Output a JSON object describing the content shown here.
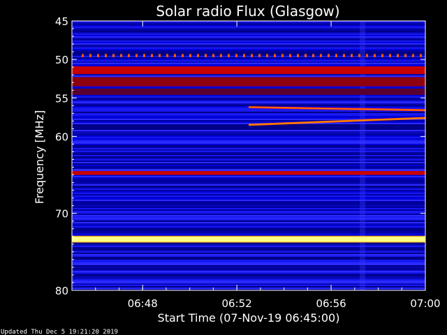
{
  "chart_data": {
    "type": "heatmap",
    "title": "Solar radio Flux (Glasgow)",
    "xlabel": "Start Time (07-Nov-19 06:45:00)",
    "ylabel": "Frequency [MHz]",
    "xlim": [
      "06:45",
      "07:00"
    ],
    "ylim": [
      45,
      80
    ],
    "y_inverted": true,
    "x_ticks": [
      "06:48",
      "06:52",
      "06:56",
      "07:00"
    ],
    "y_ticks": [
      45,
      50,
      55,
      60,
      70,
      80
    ],
    "colormap": [
      "#000060",
      "#0000c8",
      "#2020ff",
      "#c00000",
      "#ff2000",
      "#ffa000",
      "#ffff80"
    ],
    "bands": [
      {
        "freq_start": 49.3,
        "freq_end": 49.7,
        "color": "#ff5a00",
        "pattern": "dotted"
      },
      {
        "freq_start": 50.9,
        "freq_end": 51.9,
        "color": "#c80000"
      },
      {
        "freq_start": 52.3,
        "freq_end": 53.5,
        "color": "#8c0010"
      },
      {
        "freq_start": 53.8,
        "freq_end": 54.6,
        "color": "#5a0030"
      },
      {
        "freq_start": 64.5,
        "freq_end": 65.0,
        "color": "#c80000"
      },
      {
        "freq_start": 73.0,
        "freq_end": 73.7,
        "color": "#ffff80"
      }
    ],
    "bursts": [
      {
        "time_start": "06:52:30",
        "time_end": "07:00:00",
        "freq_start": 56.2,
        "freq_end": 56.6,
        "color": "#ff2a00"
      },
      {
        "time_start": "06:52:30",
        "time_end": "07:00:00",
        "freq_start": 58.5,
        "freq_end": 57.6,
        "color": "#ff5a00"
      }
    ],
    "updated": "Updated Thu Dec  5 19:21:20 2019"
  }
}
